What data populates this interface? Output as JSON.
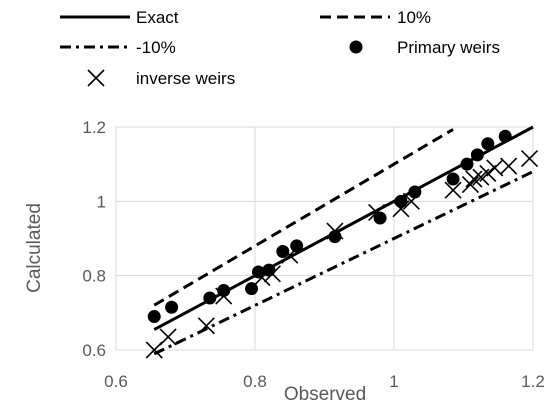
{
  "chart_data": {
    "type": "scatter",
    "xlabel": "Observed",
    "ylabel": "Calculated",
    "xlim": [
      0.6,
      1.2
    ],
    "ylim": [
      0.6,
      1.2
    ],
    "xticks": [
      "0.6",
      "0.8",
      "1",
      "1.2"
    ],
    "yticks": [
      "0.6",
      "0.8",
      "1",
      "1.2"
    ],
    "grid": true,
    "legend_position": "top",
    "legend": [
      {
        "key": "exact",
        "label": "Exact"
      },
      {
        "key": "plus10",
        "label": "10%"
      },
      {
        "key": "minus10",
        "label": "-10%"
      },
      {
        "key": "primary",
        "label": "Primary weirs"
      },
      {
        "key": "inverse",
        "label": "inverse weirs"
      }
    ],
    "lines": [
      {
        "key": "exact",
        "style": "solid",
        "factor": 1.0,
        "x": [
          0.655,
          1.2
        ]
      },
      {
        "key": "plus10",
        "style": "dashed",
        "factor": 1.1,
        "x": [
          0.655,
          1.085
        ]
      },
      {
        "key": "minus10",
        "style": "dash-dot",
        "factor": 0.9,
        "x": [
          0.655,
          1.2
        ]
      }
    ],
    "series": [
      {
        "key": "primary",
        "marker": "circle",
        "points": [
          [
            0.655,
            0.69
          ],
          [
            0.68,
            0.715
          ],
          [
            0.735,
            0.74
          ],
          [
            0.755,
            0.76
          ],
          [
            0.795,
            0.765
          ],
          [
            0.805,
            0.81
          ],
          [
            0.82,
            0.815
          ],
          [
            0.84,
            0.865
          ],
          [
            0.86,
            0.88
          ],
          [
            0.915,
            0.905
          ],
          [
            0.98,
            0.955
          ],
          [
            1.01,
            1.0
          ],
          [
            1.03,
            1.025
          ],
          [
            1.085,
            1.06
          ],
          [
            1.105,
            1.1
          ],
          [
            1.12,
            1.125
          ],
          [
            1.135,
            1.155
          ],
          [
            1.16,
            1.175
          ]
        ]
      },
      {
        "key": "inverse",
        "marker": "x",
        "points": [
          [
            0.655,
            0.6
          ],
          [
            0.675,
            0.635
          ],
          [
            0.73,
            0.665
          ],
          [
            0.755,
            0.745
          ],
          [
            0.81,
            0.795
          ],
          [
            0.825,
            0.805
          ],
          [
            0.85,
            0.855
          ],
          [
            0.915,
            0.92
          ],
          [
            0.975,
            0.97
          ],
          [
            1.01,
            0.98
          ],
          [
            1.025,
            1.0
          ],
          [
            1.085,
            1.03
          ],
          [
            1.11,
            1.045
          ],
          [
            1.115,
            1.06
          ],
          [
            1.125,
            1.065
          ],
          [
            1.135,
            1.075
          ],
          [
            1.145,
            1.09
          ],
          [
            1.165,
            1.095
          ],
          [
            1.195,
            1.115
          ]
        ]
      }
    ]
  }
}
